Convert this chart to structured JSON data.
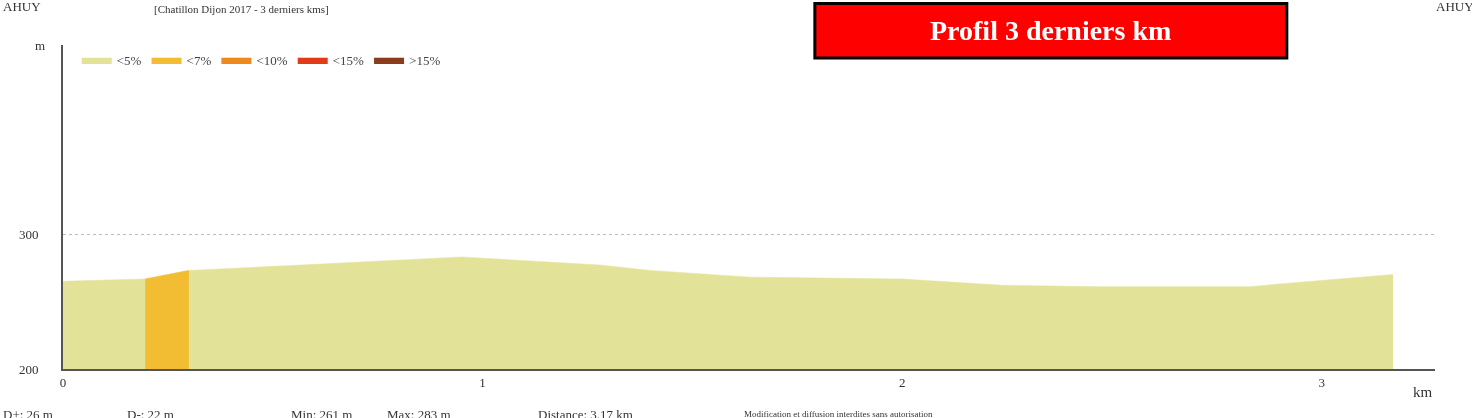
{
  "chart_data": {
    "type": "area",
    "title": "Profil 3 derniers km",
    "subtitle": "[Chatillon Dijon 2017 - 3 derniers kms]",
    "xlabel": "km",
    "ylabel": "m",
    "annotations": [
      "AHUY",
      "AHUY",
      "D+: 26 m",
      "D-: 22 m",
      "Min: 261 m",
      "Max: 283 m",
      "Distance: 3.17 km",
      "Modification et diffusion interdites sans autorisation"
    ],
    "x": [
      0,
      0.196,
      0.3,
      0.567,
      0.95,
      1.28,
      1.4,
      1.64,
      2.0,
      2.24,
      2.47,
      2.83,
      2.9,
      3.17
    ],
    "series": [
      {
        "name": "<5%",
        "color": "#e2e399",
        "values": [
          265,
          266.7,
          273,
          277,
          283,
          277,
          273,
          268,
          266.7,
          262,
          261,
          261,
          263,
          270
        ]
      },
      {
        "name": "<7%",
        "color": "#f2bd33",
        "x": [
          0.196,
          0.3
        ],
        "values": [
          266.7,
          273
        ]
      },
      {
        "name": "<10%",
        "color": "#ee8a1d",
        "values": [
          null,
          null,
          null,
          null,
          null,
          null,
          null,
          null,
          null,
          null,
          null,
          null,
          null,
          null
        ]
      },
      {
        "name": "<15%",
        "color": "#e23b1b",
        "values": [
          null,
          null,
          null,
          null,
          null,
          null,
          null,
          null,
          null,
          null,
          null,
          null,
          null,
          null
        ]
      },
      {
        "name": ">15%",
        "color": "#8a3c1c",
        "values": [
          null,
          null,
          null,
          null,
          null,
          null,
          null,
          null,
          null,
          null,
          null,
          null,
          null,
          null
        ]
      }
    ],
    "xlim": [
      0,
      3.27
    ],
    "xticks": [
      0,
      1,
      2,
      3
    ],
    "ylim": [
      200,
      440
    ],
    "yticks": [
      200,
      300
    ],
    "grid": "y",
    "legend": "top left",
    "marker": "none"
  }
}
